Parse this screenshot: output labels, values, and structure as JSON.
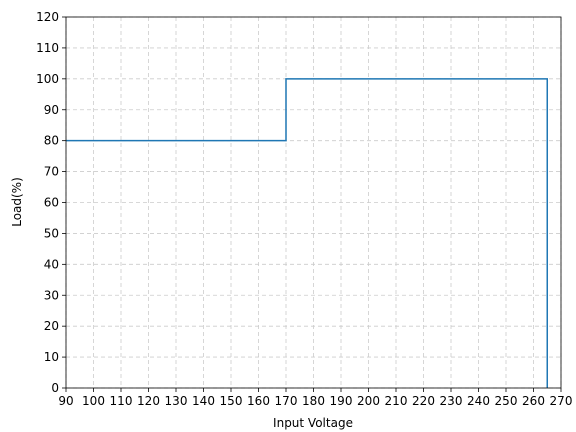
{
  "chart_data": {
    "type": "line",
    "title": "",
    "xlabel": "Input Voltage",
    "ylabel": "Load(%)",
    "xlim": [
      90,
      270
    ],
    "ylim": [
      0,
      120
    ],
    "xticks": [
      90,
      100,
      110,
      120,
      130,
      140,
      150,
      160,
      170,
      180,
      190,
      200,
      210,
      220,
      230,
      240,
      250,
      260,
      270
    ],
    "yticks": [
      0,
      10,
      20,
      30,
      40,
      50,
      60,
      70,
      80,
      90,
      100,
      110,
      120
    ],
    "grid": true,
    "series": [
      {
        "color": "#1f77b4",
        "x": [
          90,
          170,
          170,
          265,
          265
        ],
        "y": [
          80,
          80,
          100,
          100,
          0
        ]
      }
    ]
  }
}
